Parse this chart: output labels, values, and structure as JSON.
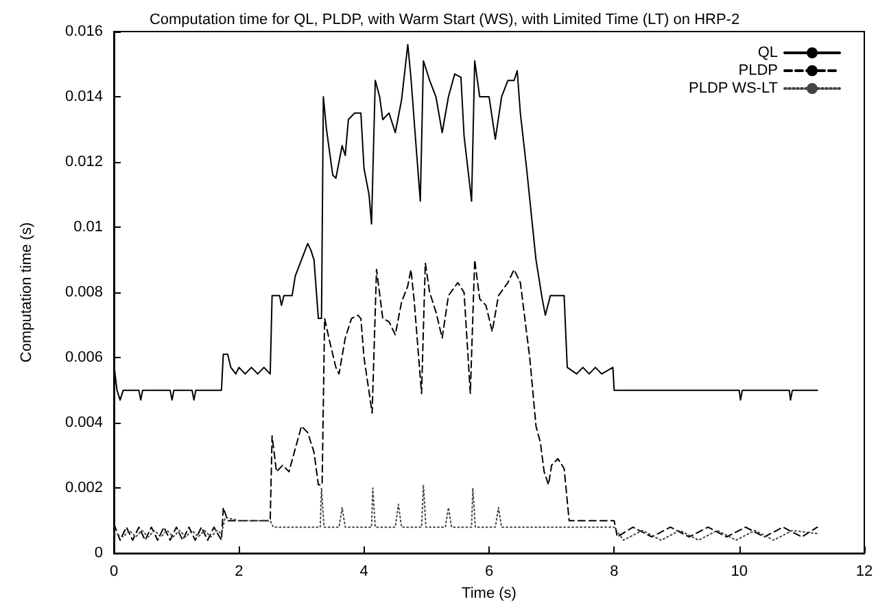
{
  "chart_data": {
    "type": "line",
    "title": "Computation time for QL, PLDP, with Warm Start (WS), with Limited Time (LT) on HRP-2",
    "xlabel": "Time (s)",
    "ylabel": "Computation time (s)",
    "xlim": [
      0,
      12
    ],
    "xticks": [
      0,
      2,
      4,
      6,
      8,
      10,
      12
    ],
    "ylim": [
      0,
      0.016
    ],
    "yticks": [
      0,
      0.002,
      0.004,
      0.006,
      0.008,
      0.01,
      0.012,
      0.014,
      0.016
    ],
    "grid": false,
    "legend": "top right",
    "marker": "none",
    "series": [
      {
        "name": "QL",
        "color": "#000000",
        "line_style": "solid",
        "x": [
          0,
          0.05,
          0.1,
          0.15,
          0.4,
          0.43,
          0.46,
          0.9,
          0.93,
          0.96,
          1.25,
          1.28,
          1.31,
          1.72,
          1.75,
          1.82,
          1.87,
          1.95,
          2.0,
          2.1,
          2.2,
          2.3,
          2.4,
          2.5,
          2.53,
          2.65,
          2.68,
          2.72,
          2.85,
          2.9,
          3.0,
          3.1,
          3.15,
          3.2,
          3.27,
          3.32,
          3.35,
          3.4,
          3.5,
          3.55,
          3.65,
          3.7,
          3.75,
          3.85,
          3.95,
          4.0,
          4.08,
          4.12,
          4.18,
          4.25,
          4.3,
          4.4,
          4.5,
          4.6,
          4.7,
          4.75,
          4.82,
          4.9,
          4.95,
          5.05,
          5.15,
          5.25,
          5.35,
          5.45,
          5.55,
          5.6,
          5.72,
          5.77,
          5.85,
          6.0,
          6.1,
          6.2,
          6.3,
          6.4,
          6.45,
          6.5,
          6.6,
          6.75,
          6.85,
          6.9,
          6.98,
          7.15,
          7.2,
          7.25,
          7.4,
          7.5,
          7.6,
          7.7,
          7.8,
          7.98,
          8.0,
          10.0,
          10.02,
          10.05,
          10.8,
          10.82,
          10.85,
          11.25
        ],
        "values": [
          0.0058,
          0.005,
          0.0047,
          0.005,
          0.005,
          0.0047,
          0.005,
          0.005,
          0.0047,
          0.005,
          0.005,
          0.0047,
          0.005,
          0.005,
          0.0061,
          0.0061,
          0.0057,
          0.0055,
          0.0057,
          0.0055,
          0.0057,
          0.0055,
          0.0057,
          0.0055,
          0.0079,
          0.0079,
          0.0076,
          0.0079,
          0.0079,
          0.0085,
          0.009,
          0.0095,
          0.0093,
          0.009,
          0.0072,
          0.0072,
          0.014,
          0.013,
          0.0116,
          0.0115,
          0.0125,
          0.0122,
          0.0133,
          0.0135,
          0.0135,
          0.0118,
          0.011,
          0.0101,
          0.0145,
          0.014,
          0.0133,
          0.0135,
          0.0129,
          0.0139,
          0.0156,
          0.0146,
          0.0128,
          0.0108,
          0.0151,
          0.0145,
          0.014,
          0.0129,
          0.014,
          0.0147,
          0.0146,
          0.0128,
          0.0108,
          0.0151,
          0.014,
          0.014,
          0.0127,
          0.014,
          0.0145,
          0.0145,
          0.0148,
          0.0135,
          0.0118,
          0.009,
          0.0078,
          0.0073,
          0.0079,
          0.0079,
          0.0079,
          0.0057,
          0.0055,
          0.0057,
          0.0055,
          0.0057,
          0.0055,
          0.0057,
          0.005,
          0.005,
          0.0047,
          0.005,
          0.005,
          0.0047,
          0.005,
          0.005
        ]
      },
      {
        "name": "PLDP",
        "color": "#000000",
        "line_style": "dashed",
        "x": [
          0,
          0.1,
          0.2,
          0.3,
          0.4,
          0.5,
          0.6,
          0.7,
          0.8,
          0.9,
          1.0,
          1.1,
          1.2,
          1.3,
          1.4,
          1.5,
          1.6,
          1.72,
          1.75,
          1.82,
          2.0,
          2.5,
          2.53,
          2.6,
          2.7,
          2.8,
          2.9,
          3.0,
          3.1,
          3.2,
          3.27,
          3.33,
          3.37,
          3.45,
          3.55,
          3.6,
          3.7,
          3.8,
          3.9,
          3.95,
          4.0,
          4.13,
          4.2,
          4.3,
          4.4,
          4.5,
          4.6,
          4.7,
          4.75,
          4.8,
          4.92,
          4.98,
          5.05,
          5.15,
          5.25,
          5.35,
          5.5,
          5.6,
          5.7,
          5.77,
          5.85,
          5.95,
          6.05,
          6.15,
          6.3,
          6.4,
          6.5,
          6.65,
          6.75,
          6.82,
          6.88,
          6.95,
          7.0,
          7.1,
          7.2,
          7.28,
          7.4,
          8.0,
          8.05,
          8.3,
          8.6,
          8.9,
          9.2,
          9.5,
          9.8,
          10.1,
          10.4,
          10.7,
          11.0,
          11.25
        ],
        "values": [
          0.0009,
          0.0004,
          0.0008,
          0.0004,
          0.0008,
          0.0004,
          0.0008,
          0.0004,
          0.0008,
          0.0004,
          0.0008,
          0.0004,
          0.0008,
          0.0004,
          0.0008,
          0.0004,
          0.0008,
          0.0004,
          0.0014,
          0.001,
          0.001,
          0.001,
          0.0036,
          0.0025,
          0.0027,
          0.0025,
          0.0032,
          0.0039,
          0.0037,
          0.0031,
          0.0021,
          0.0021,
          0.0072,
          0.0065,
          0.0057,
          0.0055,
          0.0066,
          0.0072,
          0.0073,
          0.0072,
          0.006,
          0.0043,
          0.0087,
          0.0072,
          0.0071,
          0.0067,
          0.0077,
          0.0082,
          0.0087,
          0.0078,
          0.0049,
          0.0089,
          0.008,
          0.0074,
          0.0066,
          0.0079,
          0.0083,
          0.008,
          0.0049,
          0.009,
          0.0078,
          0.0076,
          0.0068,
          0.0079,
          0.0083,
          0.0087,
          0.0083,
          0.006,
          0.0039,
          0.0034,
          0.0025,
          0.0021,
          0.0027,
          0.0029,
          0.0026,
          0.001,
          0.001,
          0.001,
          0.0005,
          0.0008,
          0.0005,
          0.0008,
          0.0005,
          0.0008,
          0.0005,
          0.0008,
          0.0005,
          0.0008,
          0.0005,
          0.0008
        ]
      },
      {
        "name": "PLDP WS-LT",
        "color": "#444444",
        "line_style": "dotted",
        "x": [
          0,
          0.15,
          0.25,
          0.35,
          0.45,
          0.55,
          0.65,
          0.75,
          0.85,
          0.95,
          1.05,
          1.15,
          1.25,
          1.35,
          1.45,
          1.55,
          1.65,
          1.72,
          1.78,
          2.0,
          2.5,
          2.55,
          3.0,
          3.3,
          3.32,
          3.36,
          3.6,
          3.65,
          3.7,
          4.12,
          4.14,
          4.18,
          4.5,
          4.55,
          4.6,
          4.92,
          4.95,
          4.99,
          5.3,
          5.35,
          5.4,
          5.72,
          5.74,
          5.78,
          6.1,
          6.15,
          6.2,
          6.5,
          7.0,
          7.5,
          8.0,
          8.15,
          8.45,
          8.75,
          9.05,
          9.35,
          9.65,
          9.95,
          10.25,
          10.55,
          10.85,
          11.25
        ],
        "values": [
          0.0006,
          0.0005,
          0.0007,
          0.0005,
          0.0007,
          0.0005,
          0.0007,
          0.0005,
          0.0007,
          0.0005,
          0.0007,
          0.0005,
          0.0007,
          0.0005,
          0.0007,
          0.0005,
          0.0007,
          0.0006,
          0.0011,
          0.001,
          0.001,
          0.0008,
          0.0008,
          0.0008,
          0.002,
          0.0008,
          0.0008,
          0.0014,
          0.0008,
          0.0008,
          0.002,
          0.0008,
          0.0008,
          0.0015,
          0.0008,
          0.0008,
          0.0021,
          0.0008,
          0.0008,
          0.0014,
          0.0008,
          0.0008,
          0.002,
          0.0008,
          0.0008,
          0.0014,
          0.0008,
          0.0008,
          0.0008,
          0.0008,
          0.0008,
          0.0004,
          0.0007,
          0.0004,
          0.0007,
          0.0004,
          0.0007,
          0.0004,
          0.0007,
          0.0004,
          0.0007,
          0.0006
        ]
      }
    ]
  }
}
